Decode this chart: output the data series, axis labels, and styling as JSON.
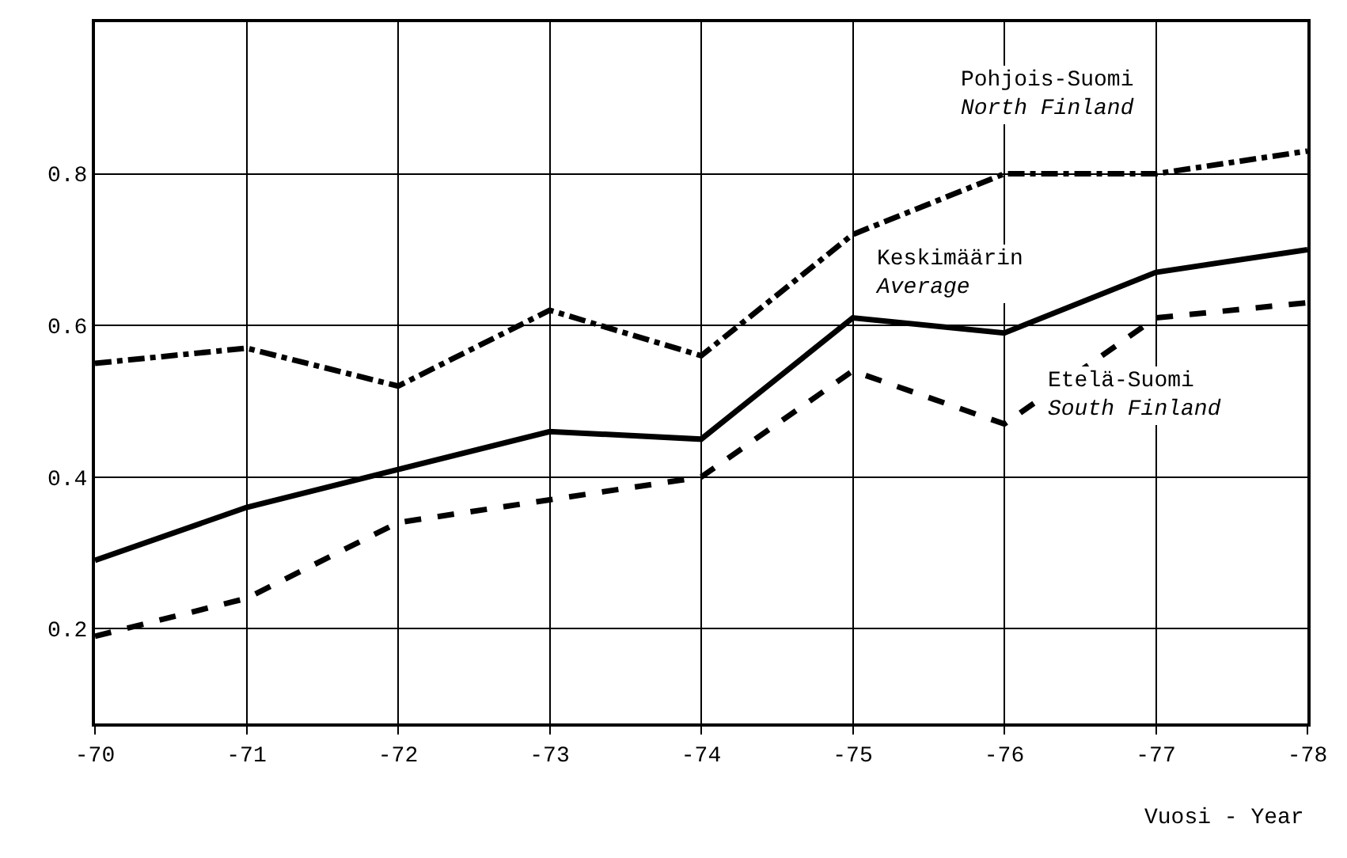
{
  "chart_data": {
    "type": "line",
    "xlabel": "Vuosi - Year",
    "categories": [
      "-70",
      "-71",
      "-72",
      "-73",
      "-74",
      "-75",
      "-76",
      "-77",
      "-78"
    ],
    "ylim": [
      0.075,
      1.0
    ],
    "yticks": [
      0.2,
      0.4,
      0.6,
      0.8
    ],
    "grid": true,
    "legend": false,
    "marker": "none",
    "series": [
      {
        "name": "Pohjois-Suomi\nNorth Finland",
        "color": "#000000",
        "line_style": "dashdot",
        "values": [
          0.55,
          0.57,
          0.52,
          0.62,
          0.56,
          0.72,
          0.8,
          0.8,
          0.83
        ]
      },
      {
        "name": "Keskimäärin\nAverage",
        "color": "#000000",
        "line_style": "solid",
        "values": [
          0.29,
          0.36,
          0.41,
          0.46,
          0.45,
          0.61,
          0.59,
          0.67,
          0.7
        ]
      },
      {
        "name": "Etelä-Suomi\nSouth Finland",
        "color": "#000000",
        "line_style": "dashed",
        "values": [
          0.19,
          0.24,
          0.34,
          0.37,
          0.4,
          0.54,
          0.47,
          0.61,
          0.63
        ]
      }
    ]
  }
}
